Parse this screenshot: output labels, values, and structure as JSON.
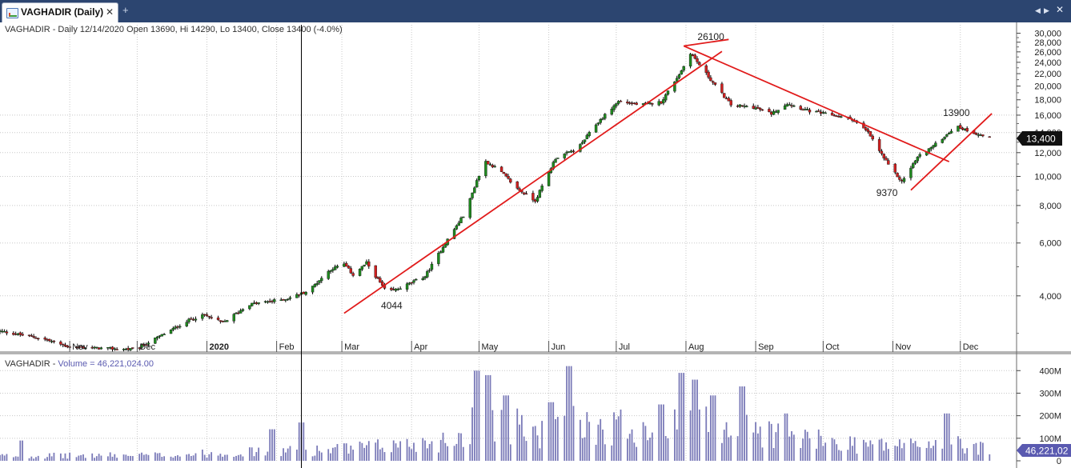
{
  "window": {
    "tab_title": "VAGHADIR (Daily)",
    "close_glyph": "✕",
    "add_glyph": "+",
    "nav_left_glyph": "◀",
    "nav_right_glyph": "▶",
    "window_close_glyph": "✕",
    "icons": [
      "chart-icon",
      "close-icon",
      "add-tab-icon",
      "chevron-left-icon",
      "chevron-right-icon"
    ]
  },
  "chart_data": {
    "type": "candlestick",
    "scale": "log",
    "price_header": "VAGHADIR - Daily 12/14/2020 Open 13690, Hi 14290, Lo 13400, Close 13400 (-4.0%)",
    "volume_header_name": "VAGHADIR",
    "volume_header_label": "Volume = 46,221,024.00",
    "last_close_label": "13,400",
    "last_volume_label": "46,221,02",
    "y_tick_labels": [
      "30,000",
      "28,000",
      "26,000",
      "24,000",
      "22,000",
      "20,000",
      "18,000",
      "16,000",
      "14,000",
      "12,000",
      "10,000",
      "8,000",
      "6,000",
      "4,000"
    ],
    "y_ticks": [
      30000,
      28000,
      26000,
      24000,
      22000,
      20000,
      18000,
      16000,
      14000,
      12000,
      10000,
      8000,
      6000,
      4000
    ],
    "minor_ticks": [
      3000,
      5000,
      7000,
      9000,
      11000,
      13000,
      15000,
      17000,
      19000,
      21000,
      23000,
      25000,
      27000,
      29000
    ],
    "y_range": [
      2600,
      32000
    ],
    "x_labels": [
      "Nov",
      "Dec",
      "2020",
      "Feb",
      "Mar",
      "Apr",
      "May",
      "Jun",
      "Jul",
      "Aug",
      "Sep",
      "Oct",
      "Nov",
      "Dec"
    ],
    "x_range": [
      "2019-10-01",
      "2020-12-26"
    ],
    "x_label_dates": [
      "2019-11-01",
      "2019-12-01",
      "2020-01-01",
      "2020-02-01",
      "2020-03-01",
      "2020-04-01",
      "2020-05-01",
      "2020-06-01",
      "2020-07-01",
      "2020-08-01",
      "2020-09-01",
      "2020-10-01",
      "2020-11-01",
      "2020-12-01"
    ],
    "crosshair_date": "2020-02-12",
    "volume_axis": {
      "tick_labels": [
        "400M",
        "300M",
        "200M",
        "100M",
        "0"
      ],
      "ticks": [
        400,
        300,
        200,
        100,
        0
      ],
      "max": 440,
      "unit": "M"
    },
    "colors": {
      "up": "#1f8a1f",
      "down": "#d02020",
      "wick": "#000000",
      "trendline": "#e11b1b",
      "volume": "#7a7ab8",
      "grid": "#c8c8c8"
    },
    "annotations": [
      {
        "text": "26100",
        "date": "2020-08-04",
        "value": 26100
      },
      {
        "text": "4044",
        "date": "2020-03-17",
        "value": 4044
      },
      {
        "text": "9370",
        "date": "2020-11-05",
        "value": 9370
      },
      {
        "text": "13900",
        "date": "2020-11-29",
        "value": 13900
      }
    ],
    "trendlines": [
      {
        "start": {
          "date": "2020-03-02",
          "value": 3500
        },
        "end": {
          "date": "2020-08-17",
          "value": 26100
        }
      },
      {
        "start": {
          "date": "2020-07-31",
          "value": 27200
        },
        "end": {
          "date": "2020-08-20",
          "value": 28600
        }
      },
      {
        "start": {
          "date": "2020-07-31",
          "value": 27200
        },
        "end": {
          "date": "2020-11-26",
          "value": 11200
        }
      },
      {
        "start": {
          "date": "2020-11-09",
          "value": 9000
        },
        "end": {
          "date": "2020-12-15",
          "value": 16200
        }
      }
    ],
    "anchors": [
      [
        "2019-10-01",
        3050
      ],
      [
        "2019-10-20",
        2880
      ],
      [
        "2019-11-01",
        2700
      ],
      [
        "2019-11-30",
        2650
      ],
      [
        "2019-12-08",
        2850
      ],
      [
        "2019-12-25",
        3350
      ],
      [
        "2019-12-31",
        3450
      ],
      [
        "2020-01-08",
        3250
      ],
      [
        "2020-01-20",
        3750
      ],
      [
        "2020-02-05",
        3900
      ],
      [
        "2020-02-15",
        4150
      ],
      [
        "2020-02-25",
        4900
      ],
      [
        "2020-03-02",
        5100
      ],
      [
        "2020-03-06",
        4700
      ],
      [
        "2020-03-12",
        5150
      ],
      [
        "2020-03-21",
        4100
      ],
      [
        "2020-03-27",
        4250
      ],
      [
        "2020-04-07",
        4650
      ],
      [
        "2020-04-16",
        6000
      ],
      [
        "2020-04-25",
        7600
      ],
      [
        "2020-04-30",
        9700
      ],
      [
        "2020-05-04",
        11200
      ],
      [
        "2020-05-10",
        10500
      ],
      [
        "2020-05-18",
        9100
      ],
      [
        "2020-05-26",
        8300
      ],
      [
        "2020-06-04",
        11500
      ],
      [
        "2020-06-14",
        12400
      ],
      [
        "2020-06-22",
        14900
      ],
      [
        "2020-07-02",
        17800
      ],
      [
        "2020-07-12",
        17300
      ],
      [
        "2020-07-21",
        17700
      ],
      [
        "2020-07-30",
        22500
      ],
      [
        "2020-08-03",
        25800
      ],
      [
        "2020-08-12",
        21000
      ],
      [
        "2020-08-21",
        17300
      ],
      [
        "2020-08-31",
        17000
      ],
      [
        "2020-09-08",
        16200
      ],
      [
        "2020-09-15",
        17500
      ],
      [
        "2020-09-25",
        16500
      ],
      [
        "2020-10-05",
        16000
      ],
      [
        "2020-10-14",
        15500
      ],
      [
        "2020-10-21",
        14000
      ],
      [
        "2020-10-30",
        10900
      ],
      [
        "2020-11-05",
        9600
      ],
      [
        "2020-11-12",
        11600
      ],
      [
        "2020-11-20",
        12800
      ],
      [
        "2020-11-29",
        14700
      ],
      [
        "2020-12-08",
        13900
      ],
      [
        "2020-12-14",
        13400
      ]
    ],
    "volume_anchors": [
      [
        "2019-10-01",
        25
      ],
      [
        "2019-12-15",
        30
      ],
      [
        "2020-01-15",
        45
      ],
      [
        "2020-02-20",
        55
      ],
      [
        "2020-03-15",
        70
      ],
      [
        "2020-04-20",
        110
      ],
      [
        "2020-05-01",
        220
      ],
      [
        "2020-05-10",
        200
      ],
      [
        "2020-06-01",
        130
      ],
      [
        "2020-06-10",
        190
      ],
      [
        "2020-07-20",
        170
      ],
      [
        "2020-08-10",
        190
      ],
      [
        "2020-09-01",
        160
      ],
      [
        "2020-10-01",
        100
      ],
      [
        "2020-11-01",
        80
      ],
      [
        "2020-11-25",
        95
      ],
      [
        "2020-12-14",
        60
      ]
    ],
    "volume_spikes": [
      [
        "2019-10-11",
        90
      ],
      [
        "2020-01-30",
        140
      ],
      [
        "2020-02-12",
        170
      ],
      [
        "2020-04-30",
        400
      ],
      [
        "2020-05-05",
        380
      ],
      [
        "2020-05-13",
        290
      ],
      [
        "2020-06-02",
        260
      ],
      [
        "2020-06-10",
        420
      ],
      [
        "2020-07-21",
        250
      ],
      [
        "2020-07-30",
        390
      ],
      [
        "2020-08-05",
        360
      ],
      [
        "2020-08-13",
        290
      ],
      [
        "2020-08-26",
        330
      ],
      [
        "2020-09-14",
        210
      ],
      [
        "2020-11-25",
        210
      ]
    ]
  }
}
